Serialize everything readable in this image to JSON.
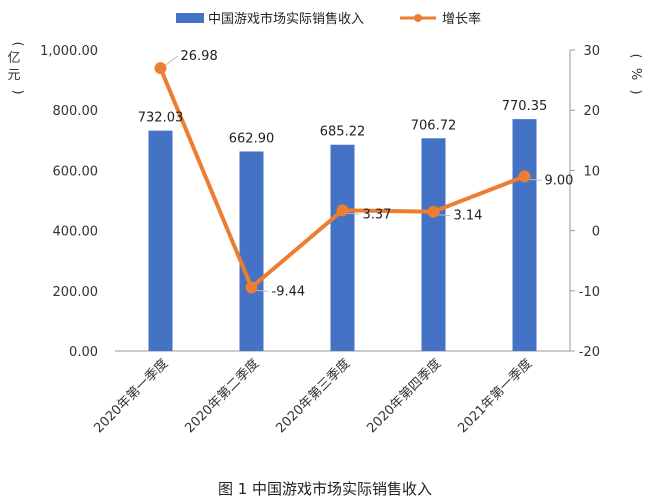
{
  "chart_data": {
    "type": "bar",
    "title": "",
    "caption": "图 1 中国游戏市场实际销售收入",
    "categories": [
      "2020年第一季度",
      "2020年第二季度",
      "2020年第三季度",
      "2020年第四季度",
      "2021年第一季度"
    ],
    "series": [
      {
        "name": "中国游戏市场实际销售收入",
        "type": "bar",
        "axis": "left",
        "values": [
          732.03,
          662.9,
          685.22,
          706.72,
          770.35
        ],
        "labels": [
          "732.03",
          "662.90",
          "685.22",
          "706.72",
          "770.35"
        ],
        "color": "#4472C4"
      },
      {
        "name": "增长率",
        "type": "line",
        "axis": "right",
        "values": [
          26.98,
          -9.44,
          3.37,
          3.14,
          9.0
        ],
        "labels": [
          "26.98",
          "-9.44",
          "3.37",
          "3.14",
          "9.00"
        ],
        "color": "#ED7D31"
      }
    ],
    "y_left": {
      "label": "亿元",
      "range": [
        0,
        1000
      ],
      "ticks": [
        "0.00",
        "200.00",
        "400.00",
        "600.00",
        "800.00",
        "1,000.00"
      ],
      "tick_values": [
        0,
        200,
        400,
        600,
        800,
        1000
      ]
    },
    "y_right": {
      "label": "%",
      "range": [
        -20,
        30
      ],
      "ticks": [
        "-20",
        "-10",
        "0",
        "10",
        "20",
        "30"
      ],
      "tick_values": [
        -20,
        -10,
        0,
        10,
        20,
        30
      ]
    },
    "legend_position": "top",
    "grid": false
  }
}
